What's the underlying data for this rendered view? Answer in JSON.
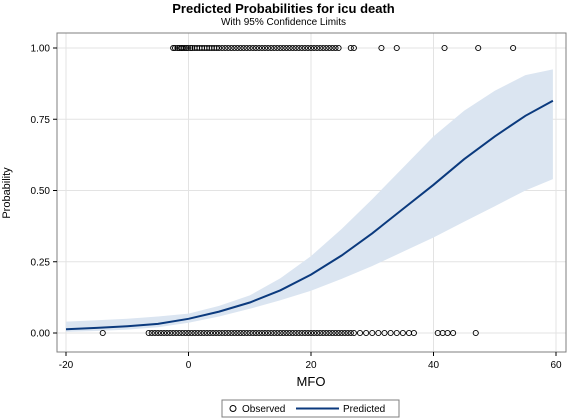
{
  "chart_data": {
    "type": "line",
    "title": "Predicted Probabilities for icu  death",
    "subtitle": "With 95% Confidence Limits",
    "xlabel": "MFO",
    "ylabel": "Probability",
    "xlim": [
      -20,
      60
    ],
    "ylim": [
      0,
      1
    ],
    "x_ticks": [
      "-20",
      "0",
      "20",
      "40",
      "60"
    ],
    "x_tick_values": [
      -20,
      0,
      20,
      40,
      60
    ],
    "y_ticks": [
      "0.00",
      "0.25",
      "0.50",
      "0.75",
      "1.00"
    ],
    "y_tick_values": [
      0,
      0.25,
      0.5,
      0.75,
      1.0
    ],
    "grid": true,
    "legend_position": "bottom",
    "colors": {
      "line": "#0b3a7e",
      "band": "#dbe5f1",
      "points": "#000000"
    },
    "legend": [
      {
        "label": "Observed",
        "marker": "open-circle"
      },
      {
        "label": "Predicted",
        "marker": "line"
      }
    ],
    "series": [
      {
        "name": "Predicted",
        "kind": "line",
        "x": [
          -20,
          -15,
          -10,
          -5,
          0,
          5,
          10,
          15,
          20,
          25,
          30,
          35,
          40,
          45,
          50,
          55,
          59.5
        ],
        "y": [
          0.013,
          0.018,
          0.024,
          0.032,
          0.05,
          0.075,
          0.107,
          0.15,
          0.205,
          0.272,
          0.35,
          0.435,
          0.52,
          0.61,
          0.69,
          0.762,
          0.815
        ]
      },
      {
        "name": "With 95% Confidence Limits",
        "kind": "band",
        "x": [
          -20,
          -15,
          -10,
          -5,
          0,
          5,
          10,
          15,
          20,
          25,
          30,
          35,
          40,
          45,
          50,
          55,
          59.5
        ],
        "lower": [
          0.004,
          0.007,
          0.012,
          0.02,
          0.036,
          0.058,
          0.085,
          0.115,
          0.148,
          0.19,
          0.235,
          0.285,
          0.335,
          0.39,
          0.445,
          0.5,
          0.54
        ],
        "upper": [
          0.04,
          0.045,
          0.05,
          0.058,
          0.068,
          0.095,
          0.132,
          0.192,
          0.27,
          0.365,
          0.47,
          0.58,
          0.69,
          0.78,
          0.85,
          0.905,
          0.925
        ]
      },
      {
        "name": "Observed",
        "kind": "scatter",
        "points_y1": [
          -2.5,
          -2.2,
          -1.8,
          -1.5,
          -1.2,
          -1,
          -0.7,
          -0.4,
          -0.1,
          0.3,
          0.6,
          1,
          1.4,
          1.8,
          2.2,
          2.6,
          3,
          3.4,
          3.8,
          4.2,
          4.6,
          5,
          5.5,
          6,
          6.5,
          7,
          7.5,
          8,
          8.5,
          9,
          9.5,
          10,
          10.5,
          11,
          11.5,
          12,
          12.5,
          13,
          13.5,
          14,
          14.5,
          15,
          15.5,
          16,
          16.5,
          17,
          17.5,
          18,
          18.5,
          19,
          19.5,
          20,
          20.5,
          21,
          21.5,
          22,
          22.5,
          23,
          23.5,
          24,
          24.5,
          26.5,
          27,
          31.5,
          34,
          41.8,
          47.3,
          53
        ],
        "points_y0": [
          -14,
          -6.5,
          -6,
          -5.5,
          -5,
          -4.5,
          -4,
          -3.5,
          -3,
          -2.5,
          -2,
          -1.5,
          -1,
          -0.5,
          0,
          0.5,
          1,
          1.5,
          2,
          2.5,
          3,
          3.5,
          4,
          4.5,
          5,
          5.5,
          6,
          6.5,
          7,
          7.5,
          8,
          8.5,
          9,
          9.5,
          10,
          10.5,
          11,
          11.5,
          12,
          12.5,
          13,
          13.5,
          14,
          14.5,
          15,
          15.5,
          16,
          16.5,
          17,
          17.5,
          18,
          18.5,
          19,
          19.5,
          20,
          20.5,
          21,
          21.5,
          22,
          22.5,
          23,
          23.5,
          24,
          24.5,
          25,
          25.5,
          26,
          26.5,
          27,
          28,
          29,
          30,
          31,
          32,
          33,
          34,
          35,
          36,
          36.8,
          40.7,
          41.5,
          42.3,
          43.2,
          46.9
        ]
      }
    ]
  }
}
